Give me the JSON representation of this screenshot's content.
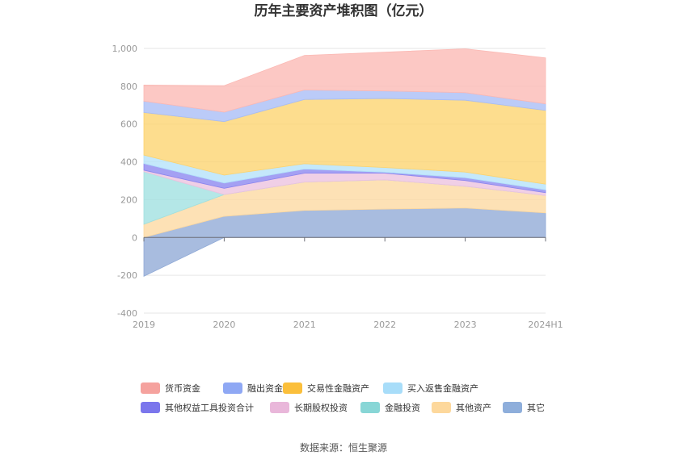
{
  "chart_data": {
    "type": "area",
    "stacked": true,
    "title": "历年主要资产堆积图（亿元）",
    "categories": [
      "2019",
      "2020",
      "2021",
      "2022",
      "2023",
      "2024H1"
    ],
    "ylim": [
      -400,
      1000
    ],
    "yticks": [
      "-400",
      "-200",
      "0",
      "200",
      "400",
      "600",
      "800",
      "1,000"
    ],
    "ytick_values": [
      -400,
      -200,
      0,
      200,
      400,
      600,
      800,
      1000
    ],
    "grid": true,
    "legend_position": "bottom",
    "series": [
      {
        "name": "其它",
        "color": "#8fa9d6",
        "values": [
          -205,
          112,
          143,
          150,
          156,
          130
        ]
      },
      {
        "name": "其他资产",
        "color": "#fdd9a0",
        "values": [
          70,
          115,
          150,
          155,
          115,
          92
        ]
      },
      {
        "name": "金融投资",
        "color": "#9fe0e0",
        "values": [
          278,
          0,
          0,
          0,
          0,
          0
        ]
      },
      {
        "name": "长期股权投资",
        "color": "#ecc2df",
        "values": [
          8,
          33,
          47,
          35,
          30,
          15
        ]
      },
      {
        "name": "其他权益工具投资合计",
        "color": "#8a85ef",
        "values": [
          35,
          28,
          22,
          5,
          15,
          15
        ]
      },
      {
        "name": "买入返售金融资产",
        "color": "#b3e2fa",
        "values": [
          45,
          42,
          28,
          25,
          30,
          30
        ]
      },
      {
        "name": "交易性金融资产",
        "color": "#fdd36e",
        "values": [
          225,
          283,
          340,
          365,
          380,
          390
        ]
      },
      {
        "name": "融出资金",
        "color": "#a8bdf6",
        "values": [
          60,
          50,
          50,
          40,
          40,
          35
        ]
      },
      {
        "name": "货币资金",
        "color": "#fbb9b4",
        "values": [
          85,
          140,
          183,
          205,
          232,
          243
        ]
      }
    ]
  },
  "legend": [
    {
      "label": "货币资金",
      "color": "#f5a29e"
    },
    {
      "label": "融出资金",
      "color": "#8fa8f4"
    },
    {
      "label": "交易性金融资产",
      "color": "#fbbf3b"
    },
    {
      "label": "买入返售金融资产",
      "color": "#a8ddf9"
    },
    {
      "label": "其他权益工具投资合计",
      "color": "#7b76ec"
    },
    {
      "label": "长期股权投资",
      "color": "#e9b7da"
    },
    {
      "label": "金融投资",
      "color": "#88d6d6"
    },
    {
      "label": "其他资产",
      "color": "#fdd89c"
    },
    {
      "label": "其它",
      "color": "#8eaedb"
    }
  ],
  "source": "数据来源：恒生聚源"
}
